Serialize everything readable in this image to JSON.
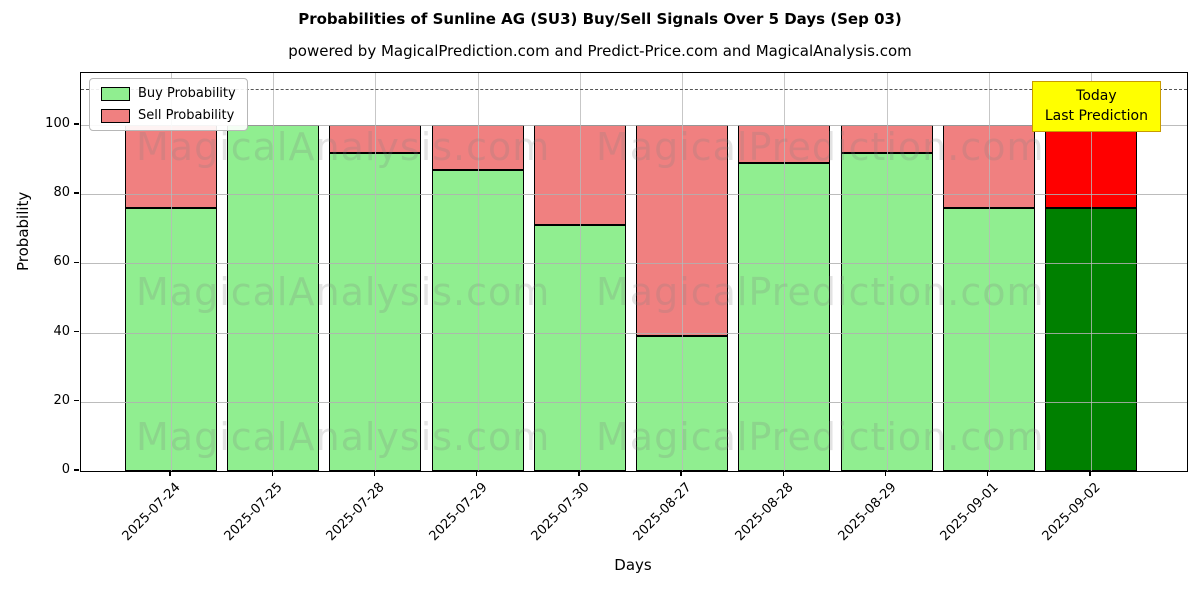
{
  "title": "Probabilities of Sunline AG (SU3) Buy/Sell Signals Over 5 Days (Sep 03)",
  "subtitle": "powered by MagicalPrediction.com and Predict-Price.com and MagicalAnalysis.com",
  "legend": {
    "items": [
      {
        "label": "Buy Probability",
        "color": "#90EE90"
      },
      {
        "label": "Sell Probability",
        "color": "#F08080"
      }
    ]
  },
  "annotation_box": {
    "line1": "Today",
    "line2": "Last Prediction",
    "bg_color": "#FFFF00",
    "border_color": "#C89B00"
  },
  "watermarks": {
    "left_text": "MagicalAnalysis.com",
    "right_text": "MagicalPrediction.com"
  },
  "chart_data": {
    "type": "bar",
    "stacked": true,
    "title": "Probabilities of Sunline AG (SU3) Buy/Sell Signals Over 5 Days (Sep 03)",
    "xlabel": "Days",
    "ylabel": "Probability",
    "categories": [
      "2025-07-24",
      "2025-07-25",
      "2025-07-28",
      "2025-07-29",
      "2025-07-30",
      "2025-08-27",
      "2025-08-28",
      "2025-08-29",
      "2025-09-01",
      "2025-09-02"
    ],
    "series": [
      {
        "name": "Buy Probability",
        "values": [
          76,
          100,
          92,
          87,
          71,
          39,
          89,
          92,
          76,
          76
        ],
        "color": "#90EE90",
        "last_bar_color": "#008000"
      },
      {
        "name": "Sell Probability",
        "values": [
          24,
          0,
          8,
          13,
          29,
          61,
          11,
          8,
          24,
          24
        ],
        "color": "#F08080",
        "last_bar_color": "#FF0000"
      }
    ],
    "yticks": [
      0,
      20,
      40,
      60,
      80,
      100
    ],
    "ylim": [
      0,
      115
    ],
    "dashed_line_y": 110,
    "grid": true,
    "legend_position": "upper left"
  }
}
